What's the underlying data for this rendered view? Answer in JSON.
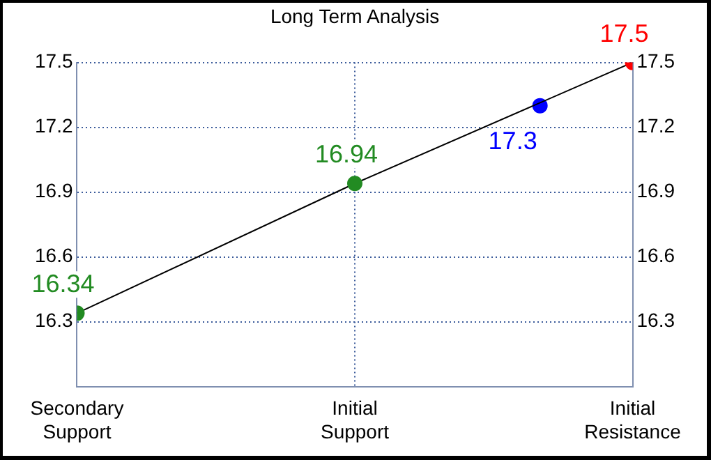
{
  "chart_data": {
    "type": "line",
    "title": "Long Term Analysis",
    "categories": [
      "Secondary Support",
      null,
      null,
      "Initial Support",
      null,
      null,
      "Initial Resistance"
    ],
    "ylim": [
      16.0,
      17.5
    ],
    "yticks": [
      16.3,
      16.6,
      16.9,
      17.2,
      17.5
    ],
    "y2lim": [
      16.0,
      17.5
    ],
    "y2ticks": [
      16.3,
      16.6,
      16.9,
      17.2,
      17.5
    ],
    "series": [
      {
        "type": "line",
        "color": "#000000",
        "values": [
          16.34,
          null,
          null,
          16.94,
          null,
          null,
          17.5
        ],
        "colors": [
          "#228b22",
          null,
          null,
          "#228b22",
          null,
          null,
          "#ff0000"
        ]
      },
      {
        "type": "scatter",
        "color": "#0000ff",
        "values": [
          null,
          null,
          null,
          null,
          null,
          17.3,
          null
        ]
      }
    ],
    "marker": "circle",
    "grid": true,
    "data_labels": true
  }
}
